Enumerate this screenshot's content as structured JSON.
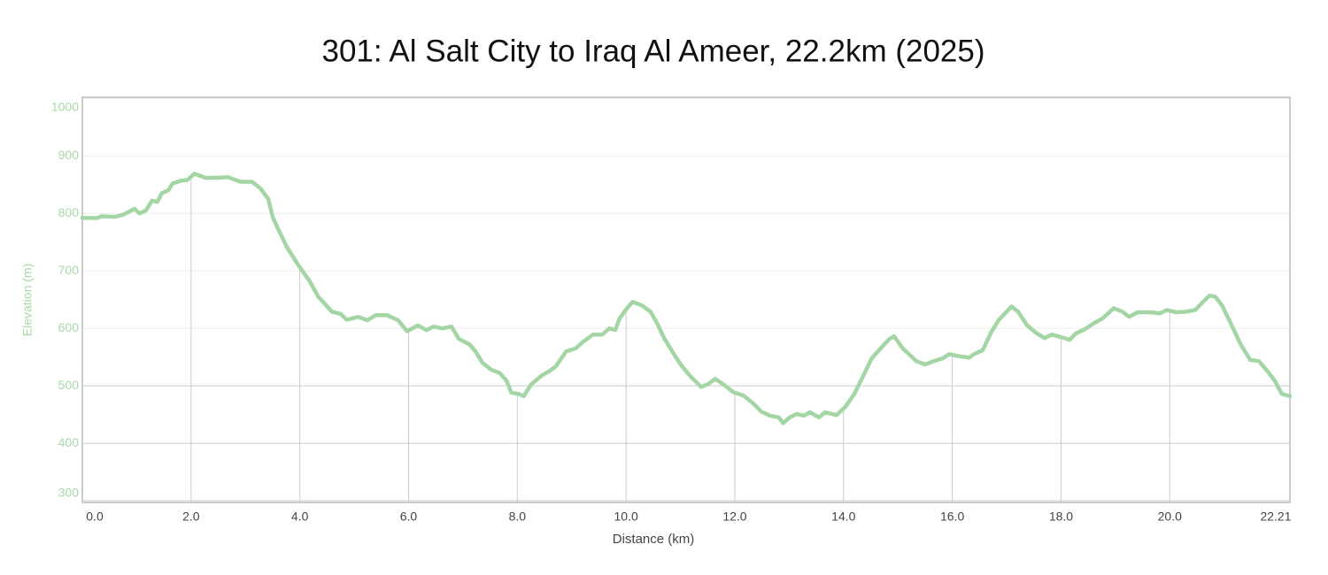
{
  "chart_data": {
    "type": "line",
    "title": "301: Al Salt City to Iraq Al Ameer, 22.2km (2025)",
    "x_label": "Distance (km)",
    "y_label": "Elevation (m)",
    "x": [
      0.0,
      0.27,
      0.35,
      0.6,
      0.76,
      0.96,
      1.05,
      1.17,
      1.28,
      1.38,
      1.46,
      1.58,
      1.66,
      1.82,
      1.93,
      2.06,
      2.26,
      2.47,
      2.68,
      2.91,
      3.12,
      3.28,
      3.42,
      3.5,
      3.61,
      3.77,
      3.98,
      4.18,
      4.34,
      4.59,
      4.75,
      4.86,
      5.08,
      5.24,
      5.4,
      5.6,
      5.81,
      5.97,
      6.17,
      6.33,
      6.46,
      6.62,
      6.79,
      6.92,
      7.12,
      7.23,
      7.36,
      7.52,
      7.68,
      7.8,
      7.89,
      8.02,
      8.12,
      8.25,
      8.45,
      8.58,
      8.71,
      8.9,
      9.07,
      9.23,
      9.39,
      9.56,
      9.69,
      9.8,
      9.88,
      10.01,
      10.12,
      10.29,
      10.45,
      10.57,
      10.7,
      10.86,
      11.02,
      11.18,
      11.38,
      11.51,
      11.64,
      11.8,
      11.97,
      12.16,
      12.32,
      12.49,
      12.65,
      12.81,
      12.89,
      13.01,
      13.14,
      13.27,
      13.38,
      13.55,
      13.66,
      13.87,
      14.03,
      14.2,
      14.36,
      14.52,
      14.69,
      14.85,
      14.93,
      15.09,
      15.34,
      15.5,
      15.66,
      15.83,
      15.94,
      16.15,
      16.31,
      16.4,
      16.56,
      16.72,
      16.85,
      16.96,
      17.09,
      17.21,
      17.37,
      17.54,
      17.7,
      17.83,
      17.99,
      18.16,
      18.27,
      18.43,
      18.59,
      18.76,
      18.97,
      19.13,
      19.25,
      19.41,
      19.65,
      19.82,
      19.95,
      20.11,
      20.3,
      20.47,
      20.6,
      20.73,
      20.84,
      20.96,
      21.12,
      21.31,
      21.48,
      21.64,
      21.8,
      21.93,
      22.06,
      22.21
    ],
    "series": [
      {
        "name": "Elevation",
        "color": "#a3d6a4",
        "values": [
          792,
          792,
          795,
          794,
          798,
          808,
          800,
          805,
          822,
          820,
          835,
          840,
          852,
          857,
          858,
          869,
          862,
          862,
          863,
          855,
          855,
          843,
          825,
          794,
          771,
          740,
          709,
          682,
          655,
          629,
          625,
          615,
          620,
          614,
          623,
          623,
          614,
          595,
          605,
          597,
          603,
          600,
          603,
          582,
          572,
          560,
          540,
          528,
          522,
          509,
          488,
          486,
          482,
          502,
          518,
          525,
          534,
          560,
          565,
          578,
          589,
          589,
          600,
          597,
          617,
          634,
          646,
          640,
          629,
          609,
          583,
          558,
          535,
          517,
          498,
          503,
          512,
          502,
          489,
          483,
          471,
          455,
          448,
          445,
          435,
          445,
          451,
          448,
          454,
          445,
          454,
          449,
          463,
          486,
          517,
          548,
          566,
          582,
          586,
          565,
          543,
          537,
          543,
          548,
          555,
          551,
          549,
          555,
          562,
          594,
          614,
          625,
          638,
          629,
          606,
          592,
          583,
          589,
          585,
          580,
          591,
          598,
          608,
          617,
          635,
          629,
          620,
          628,
          628,
          626,
          632,
          628,
          629,
          632,
          645,
          657,
          655,
          640,
          609,
          571,
          545,
          543,
          525,
          509,
          486,
          482
        ]
      }
    ],
    "xlim": [
      0,
      22.21
    ],
    "ylim": [
      297,
      1002
    ],
    "xticks": [
      {
        "value": 0,
        "label": "0.0"
      },
      {
        "value": 2,
        "label": "2.0"
      },
      {
        "value": 4,
        "label": "4.0"
      },
      {
        "value": 6,
        "label": "6.0"
      },
      {
        "value": 8,
        "label": "8.0"
      },
      {
        "value": 10,
        "label": "10.0"
      },
      {
        "value": 12,
        "label": "12.0"
      },
      {
        "value": 14,
        "label": "14.0"
      },
      {
        "value": 16,
        "label": "16.0"
      },
      {
        "value": 18,
        "label": "18.0"
      },
      {
        "value": 20,
        "label": "20.0"
      },
      22.21
    ],
    "yticks": [
      300,
      400,
      500,
      600,
      700,
      800,
      900,
      1000
    ],
    "grid": true
  }
}
